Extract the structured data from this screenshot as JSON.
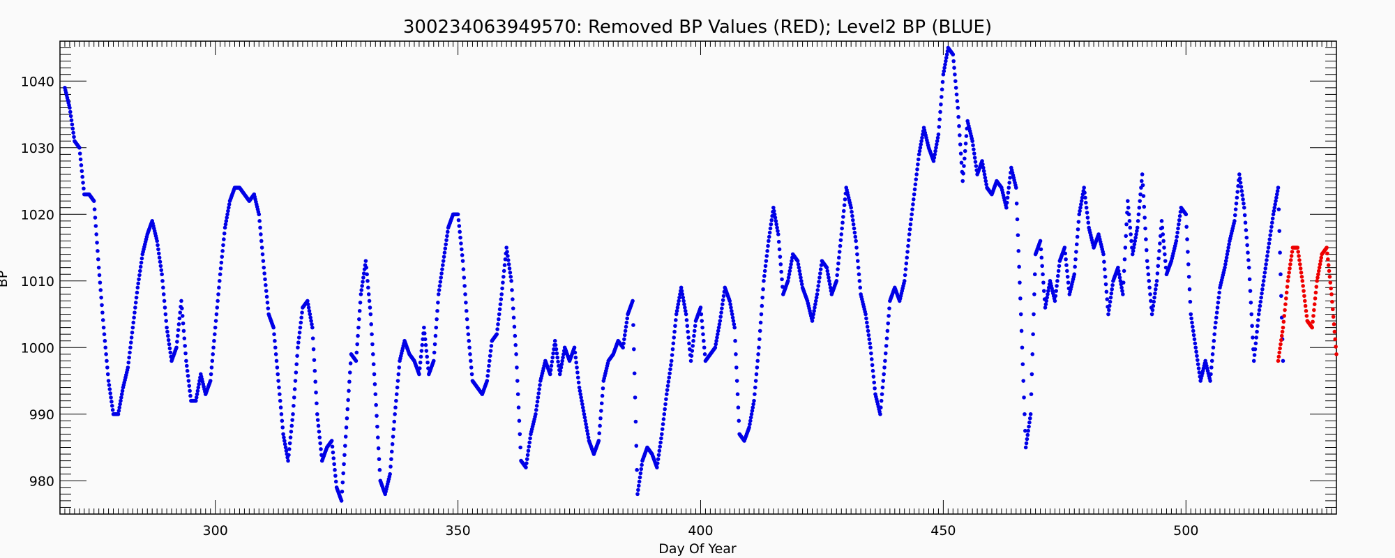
{
  "chart_data": {
    "type": "scatter",
    "title": "300234063949570: Removed BP Values (RED); Level2 BP (BLUE)",
    "xlabel": "Day Of Year",
    "ylabel": "BP",
    "xlim": [
      268,
      531
    ],
    "ylim": [
      975,
      1046
    ],
    "xticks": [
      300,
      350,
      400,
      450,
      500
    ],
    "yticks": [
      980,
      990,
      1000,
      1010,
      1020,
      1030,
      1040
    ],
    "grid": false,
    "series": [
      {
        "color": "#0000e6",
        "points": [
          [
            269,
            1039
          ],
          [
            270,
            1036
          ],
          [
            271,
            1031
          ],
          [
            272,
            1030
          ],
          [
            273,
            1023
          ],
          [
            274,
            1023
          ],
          [
            275,
            1022
          ],
          [
            276,
            1012
          ],
          [
            277,
            1003
          ],
          [
            278,
            995
          ],
          [
            279,
            990
          ],
          [
            280,
            990
          ],
          [
            281,
            994
          ],
          [
            282,
            997
          ],
          [
            283,
            1003
          ],
          [
            284,
            1009
          ],
          [
            285,
            1014
          ],
          [
            286,
            1017
          ],
          [
            287,
            1019
          ],
          [
            288,
            1016
          ],
          [
            289,
            1011
          ],
          [
            290,
            1003
          ],
          [
            291,
            998
          ],
          [
            292,
            1000
          ],
          [
            293,
            1007
          ],
          [
            294,
            998
          ],
          [
            295,
            992
          ],
          [
            296,
            992
          ],
          [
            297,
            996
          ],
          [
            298,
            993
          ],
          [
            299,
            995
          ],
          [
            300,
            1003
          ],
          [
            301,
            1011
          ],
          [
            302,
            1018
          ],
          [
            303,
            1022
          ],
          [
            304,
            1024
          ],
          [
            305,
            1024
          ],
          [
            306,
            1023
          ],
          [
            307,
            1022
          ],
          [
            308,
            1023
          ],
          [
            309,
            1020
          ],
          [
            310,
            1012
          ],
          [
            311,
            1005
          ],
          [
            312,
            1003
          ],
          [
            313,
            995
          ],
          [
            314,
            987
          ],
          [
            315,
            983
          ],
          [
            316,
            990
          ],
          [
            317,
            1000
          ],
          [
            318,
            1006
          ],
          [
            319,
            1007
          ],
          [
            320,
            1003
          ],
          [
            321,
            990
          ],
          [
            322,
            983
          ],
          [
            323,
            985
          ],
          [
            324,
            986
          ],
          [
            325,
            979
          ],
          [
            326,
            977
          ],
          [
            327,
            988
          ],
          [
            328,
            999
          ],
          [
            329,
            998
          ],
          [
            330,
            1008
          ],
          [
            331,
            1013
          ],
          [
            332,
            1005
          ],
          [
            333,
            993
          ],
          [
            334,
            980
          ],
          [
            335,
            978
          ],
          [
            336,
            981
          ],
          [
            337,
            990
          ],
          [
            338,
            998
          ],
          [
            339,
            1001
          ],
          [
            340,
            999
          ],
          [
            341,
            998
          ],
          [
            342,
            996
          ],
          [
            343,
            1003
          ],
          [
            344,
            996
          ],
          [
            345,
            998
          ],
          [
            346,
            1008
          ],
          [
            347,
            1013
          ],
          [
            348,
            1018
          ],
          [
            349,
            1020
          ],
          [
            350,
            1020
          ],
          [
            351,
            1013
          ],
          [
            352,
            1003
          ],
          [
            353,
            995
          ],
          [
            354,
            994
          ],
          [
            355,
            993
          ],
          [
            356,
            995
          ],
          [
            357,
            1001
          ],
          [
            358,
            1002
          ],
          [
            359,
            1008
          ],
          [
            360,
            1015
          ],
          [
            361,
            1010
          ],
          [
            362,
            999
          ],
          [
            363,
            983
          ],
          [
            364,
            982
          ],
          [
            365,
            987
          ],
          [
            366,
            990
          ],
          [
            367,
            995
          ],
          [
            368,
            998
          ],
          [
            369,
            996
          ],
          [
            370,
            1001
          ],
          [
            371,
            996
          ],
          [
            372,
            1000
          ],
          [
            373,
            998
          ],
          [
            374,
            1000
          ],
          [
            375,
            994
          ],
          [
            376,
            990
          ],
          [
            377,
            986
          ],
          [
            378,
            984
          ],
          [
            379,
            986
          ],
          [
            380,
            995
          ],
          [
            381,
            998
          ],
          [
            382,
            999
          ],
          [
            383,
            1001
          ],
          [
            384,
            1000
          ],
          [
            385,
            1005
          ],
          [
            386,
            1007
          ],
          [
            387,
            978
          ],
          [
            388,
            983
          ],
          [
            389,
            985
          ],
          [
            390,
            984
          ],
          [
            391,
            982
          ],
          [
            392,
            987
          ],
          [
            393,
            993
          ],
          [
            394,
            998
          ],
          [
            395,
            1005
          ],
          [
            396,
            1009
          ],
          [
            397,
            1005
          ],
          [
            398,
            998
          ],
          [
            399,
            1004
          ],
          [
            400,
            1006
          ],
          [
            401,
            998
          ],
          [
            402,
            999
          ],
          [
            403,
            1000
          ],
          [
            404,
            1004
          ],
          [
            405,
            1009
          ],
          [
            406,
            1007
          ],
          [
            407,
            1003
          ],
          [
            408,
            987
          ],
          [
            409,
            986
          ],
          [
            410,
            988
          ],
          [
            411,
            992
          ],
          [
            412,
            1000
          ],
          [
            413,
            1010
          ],
          [
            414,
            1016
          ],
          [
            415,
            1021
          ],
          [
            416,
            1017
          ],
          [
            417,
            1008
          ],
          [
            418,
            1010
          ],
          [
            419,
            1014
          ],
          [
            420,
            1013
          ],
          [
            421,
            1009
          ],
          [
            422,
            1007
          ],
          [
            423,
            1004
          ],
          [
            424,
            1008
          ],
          [
            425,
            1013
          ],
          [
            426,
            1012
          ],
          [
            427,
            1008
          ],
          [
            428,
            1010
          ],
          [
            429,
            1017
          ],
          [
            430,
            1024
          ],
          [
            431,
            1021
          ],
          [
            432,
            1016
          ],
          [
            433,
            1008
          ],
          [
            434,
            1005
          ],
          [
            435,
            1000
          ],
          [
            436,
            993
          ],
          [
            437,
            990
          ],
          [
            438,
            998
          ],
          [
            439,
            1007
          ],
          [
            440,
            1009
          ],
          [
            441,
            1007
          ],
          [
            442,
            1010
          ],
          [
            443,
            1017
          ],
          [
            444,
            1023
          ],
          [
            445,
            1029
          ],
          [
            446,
            1033
          ],
          [
            447,
            1030
          ],
          [
            448,
            1028
          ],
          [
            449,
            1032
          ],
          [
            450,
            1041
          ],
          [
            451,
            1045
          ],
          [
            452,
            1044
          ],
          [
            453,
            1036
          ],
          [
            454,
            1025
          ],
          [
            455,
            1034
          ],
          [
            456,
            1031
          ],
          [
            457,
            1026
          ],
          [
            458,
            1028
          ],
          [
            459,
            1024
          ],
          [
            460,
            1023
          ],
          [
            461,
            1025
          ],
          [
            462,
            1024
          ],
          [
            463,
            1021
          ],
          [
            464,
            1027
          ],
          [
            465,
            1024
          ],
          [
            466,
            1005
          ],
          [
            467,
            985
          ],
          [
            468,
            990
          ],
          [
            469,
            1014
          ],
          [
            470,
            1016
          ],
          [
            471,
            1006
          ],
          [
            472,
            1010
          ],
          [
            473,
            1007
          ],
          [
            474,
            1013
          ],
          [
            475,
            1015
          ],
          [
            476,
            1008
          ],
          [
            477,
            1011
          ],
          [
            478,
            1020
          ],
          [
            479,
            1024
          ],
          [
            480,
            1018
          ],
          [
            481,
            1015
          ],
          [
            482,
            1017
          ],
          [
            483,
            1014
          ],
          [
            484,
            1005
          ],
          [
            485,
            1010
          ],
          [
            486,
            1012
          ],
          [
            487,
            1008
          ],
          [
            488,
            1022
          ],
          [
            489,
            1014
          ],
          [
            490,
            1018
          ],
          [
            491,
            1026
          ],
          [
            492,
            1013
          ],
          [
            493,
            1005
          ],
          [
            494,
            1010
          ],
          [
            495,
            1019
          ],
          [
            496,
            1011
          ],
          [
            497,
            1013
          ],
          [
            498,
            1016
          ],
          [
            499,
            1021
          ],
          [
            500,
            1020
          ],
          [
            501,
            1005
          ],
          [
            502,
            1000
          ],
          [
            503,
            995
          ],
          [
            504,
            998
          ],
          [
            505,
            995
          ],
          [
            506,
            1003
          ],
          [
            507,
            1009
          ],
          [
            508,
            1012
          ],
          [
            509,
            1016
          ],
          [
            510,
            1019
          ],
          [
            511,
            1026
          ],
          [
            512,
            1021
          ],
          [
            513,
            1012
          ],
          [
            514,
            998
          ],
          [
            515,
            1005
          ],
          [
            516,
            1010
          ],
          [
            517,
            1015
          ],
          [
            518,
            1020
          ],
          [
            519,
            1024
          ],
          [
            520,
            998
          ]
        ]
      },
      {
        "color": "#ee0000",
        "points": [
          [
            519,
            998
          ],
          [
            520,
            1003
          ],
          [
            521,
            1010
          ],
          [
            522,
            1015
          ],
          [
            523,
            1015
          ],
          [
            524,
            1010
          ],
          [
            525,
            1004
          ],
          [
            526,
            1003
          ],
          [
            527,
            1010
          ],
          [
            528,
            1014
          ],
          [
            529,
            1015
          ],
          [
            530,
            1008
          ],
          [
            531,
            999
          ]
        ]
      }
    ]
  }
}
